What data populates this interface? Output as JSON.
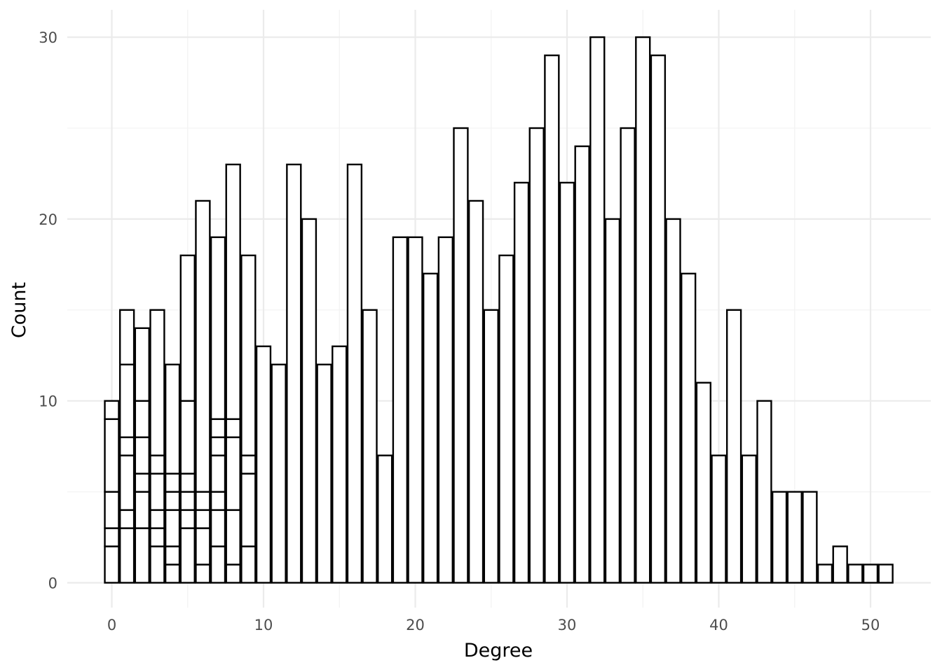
{
  "chart_data": {
    "type": "bar",
    "subtype": "stacked-histogram",
    "xlabel": "Degree",
    "ylabel": "Count",
    "xlim": [
      -0.5,
      51.5
    ],
    "ylim": [
      0,
      30
    ],
    "x_ticks": [
      0,
      10,
      20,
      30,
      40,
      50
    ],
    "x_tick_labels": [
      "0",
      "10",
      "20",
      "30",
      "40",
      "50"
    ],
    "y_ticks": [
      0,
      10,
      20,
      30
    ],
    "y_tick_labels": [
      "0",
      "10",
      "20",
      "30"
    ],
    "grid": true,
    "legend": "none",
    "bar_fill": "#ffffff",
    "bar_stroke": "#000000",
    "x": [
      0,
      1,
      2,
      3,
      4,
      5,
      6,
      7,
      8,
      9,
      10,
      11,
      12,
      13,
      14,
      15,
      16,
      17,
      18,
      19,
      20,
      21,
      22,
      23,
      24,
      25,
      26,
      27,
      28,
      29,
      30,
      31,
      32,
      33,
      34,
      35,
      36,
      37,
      38,
      39,
      40,
      41,
      42,
      43,
      44,
      45,
      46,
      47,
      48,
      49,
      50,
      51
    ],
    "stack_boundaries": [
      [
        2,
        3,
        5,
        9,
        10
      ],
      [
        3,
        4,
        7,
        8,
        12,
        15
      ],
      [
        3,
        5,
        6,
        8,
        10,
        14
      ],
      [
        2,
        3,
        4,
        6,
        7,
        15
      ],
      [
        1,
        2,
        4,
        5,
        6,
        12
      ],
      [
        3,
        4,
        5,
        6,
        10,
        18
      ],
      [
        1,
        3,
        4,
        5,
        21
      ],
      [
        2,
        4,
        5,
        7,
        8,
        9,
        19
      ],
      [
        1,
        4,
        8,
        9,
        23
      ],
      [
        2,
        6,
        7,
        18
      ],
      [
        13
      ],
      [
        12
      ],
      [
        23
      ],
      [
        20
      ],
      [
        12
      ],
      [
        13
      ],
      [
        23
      ],
      [
        15
      ],
      [
        7
      ],
      [
        19
      ],
      [
        19
      ],
      [
        17
      ],
      [
        19
      ],
      [
        25
      ],
      [
        21
      ],
      [
        15
      ],
      [
        18
      ],
      [
        22
      ],
      [
        25
      ],
      [
        29
      ],
      [
        22
      ],
      [
        24
      ],
      [
        30
      ],
      [
        20
      ],
      [
        25
      ],
      [
        30
      ],
      [
        29
      ],
      [
        20
      ],
      [
        17
      ],
      [
        11
      ],
      [
        7
      ],
      [
        15
      ],
      [
        7
      ],
      [
        10
      ],
      [
        5
      ],
      [
        5
      ],
      [
        5
      ],
      [
        1
      ],
      [
        2
      ],
      [
        1
      ],
      [
        1
      ],
      [
        1
      ]
    ],
    "totals": [
      10,
      15,
      14,
      15,
      12,
      18,
      21,
      19,
      23,
      18,
      13,
      12,
      23,
      20,
      12,
      13,
      23,
      15,
      7,
      19,
      19,
      17,
      19,
      25,
      21,
      15,
      18,
      22,
      25,
      29,
      22,
      24,
      30,
      20,
      25,
      30,
      29,
      20,
      17,
      11,
      7,
      15,
      7,
      10,
      5,
      5,
      5,
      1,
      2,
      1,
      1,
      1
    ]
  }
}
